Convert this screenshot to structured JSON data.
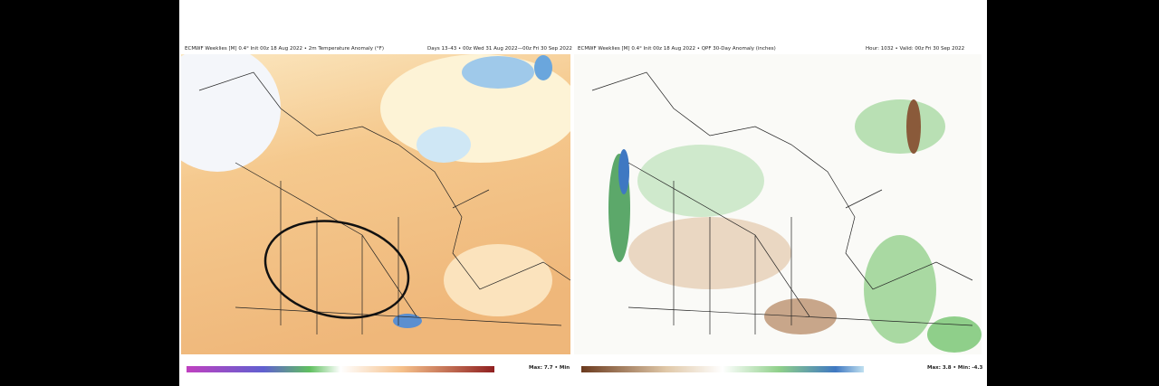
{
  "panels": [
    {
      "title": "ECMWF Weeklies [M] 0.4° Init 00z 18 Aug 2022 • 2m Temperature Anomaly (°F)",
      "subtitle": "Days 13–43 • 00z Wed 31 Aug 2022—00z Fri 30 Sep 2022",
      "stats": "Max: 7.7 • Min"
    },
    {
      "title": "ECMWF Weeklies [M] 0.4° Init 00z 18 Aug 2022 • QPF 30-Day Anomaly (inches)",
      "subtitle": "Hour: 1032 • Valid: 00z Fri 30 Sep 2022",
      "stats": "Max: 3.8 • Min: -4.3"
    }
  ]
}
